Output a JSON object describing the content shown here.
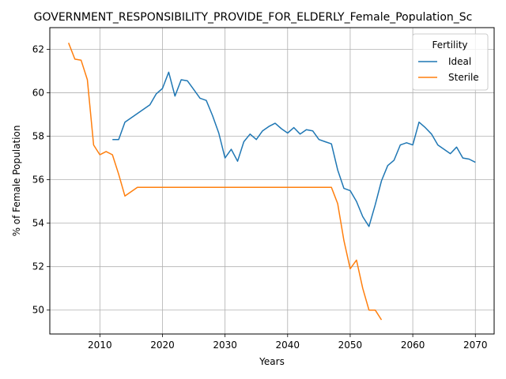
{
  "chart_data": {
    "type": "line",
    "title": "GOVERNMENT_RESPONSIBILITY_PROVIDE_FOR_ELDERLY_Female_Population_Sc",
    "xlabel": "Years",
    "ylabel": "% of Female Population",
    "xlim": [
      2002,
      2073
    ],
    "ylim": [
      48.9,
      63.0
    ],
    "xticks": [
      2010,
      2020,
      2030,
      2040,
      2050,
      2060,
      2070
    ],
    "yticks": [
      50,
      52,
      54,
      56,
      58,
      60,
      62
    ],
    "grid": true,
    "legend": {
      "title": "Fertility",
      "position": "upper right"
    },
    "series": [
      {
        "name": "Ideal",
        "color": "#1f77b4",
        "x": [
          2012,
          2013,
          2014,
          2015,
          2016,
          2017,
          2018,
          2019,
          2020,
          2021,
          2022,
          2023,
          2024,
          2025,
          2026,
          2027,
          2028,
          2029,
          2030,
          2031,
          2032,
          2033,
          2034,
          2035,
          2036,
          2037,
          2038,
          2039,
          2040,
          2041,
          2042,
          2043,
          2044,
          2045,
          2046,
          2047,
          2048,
          2049,
          2050,
          2051,
          2052,
          2053,
          2054,
          2055,
          2056,
          2057,
          2058,
          2059,
          2060,
          2061,
          2062,
          2063,
          2064,
          2065,
          2066,
          2067,
          2068,
          2069,
          2070
        ],
        "y": [
          57.85,
          57.85,
          58.65,
          58.85,
          59.05,
          59.25,
          59.45,
          59.95,
          60.2,
          60.95,
          59.85,
          60.6,
          60.55,
          60.15,
          59.75,
          59.65,
          58.95,
          58.15,
          57.0,
          57.4,
          56.85,
          57.75,
          58.1,
          57.85,
          58.25,
          58.45,
          58.6,
          58.35,
          58.15,
          58.4,
          58.1,
          58.3,
          58.25,
          57.85,
          57.75,
          57.65,
          56.45,
          55.6,
          55.5,
          55.0,
          54.3,
          53.85,
          54.85,
          55.95,
          56.65,
          56.9,
          57.6,
          57.7,
          57.6,
          58.65,
          58.4,
          58.1,
          57.6,
          57.4,
          57.2,
          57.5,
          57.0,
          56.95,
          56.8
        ]
      },
      {
        "name": "Sterile",
        "color": "#ff7f0e",
        "x": [
          2005,
          2006,
          2007,
          2008,
          2009,
          2010,
          2011,
          2012,
          2013,
          2014,
          2015,
          2016,
          2017,
          2018,
          2019,
          2020,
          2021,
          2022,
          2023,
          2024,
          2025,
          2026,
          2027,
          2028,
          2029,
          2030,
          2031,
          2032,
          2033,
          2034,
          2035,
          2036,
          2037,
          2038,
          2039,
          2040,
          2041,
          2042,
          2043,
          2044,
          2045,
          2046,
          2047,
          2048,
          2049,
          2050,
          2051,
          2052,
          2053,
          2054,
          2055
        ],
        "y": [
          62.3,
          61.55,
          61.5,
          60.6,
          57.6,
          57.15,
          57.3,
          57.15,
          56.25,
          55.25,
          55.45,
          55.65,
          55.65,
          55.65,
          55.65,
          55.65,
          55.65,
          55.65,
          55.65,
          55.65,
          55.65,
          55.65,
          55.65,
          55.65,
          55.65,
          55.65,
          55.65,
          55.65,
          55.65,
          55.65,
          55.65,
          55.65,
          55.65,
          55.65,
          55.65,
          55.65,
          55.65,
          55.65,
          55.65,
          55.65,
          55.65,
          55.65,
          55.65,
          54.9,
          53.2,
          51.9,
          52.3,
          51.0,
          50.0,
          50.0,
          49.55
        ]
      }
    ]
  }
}
